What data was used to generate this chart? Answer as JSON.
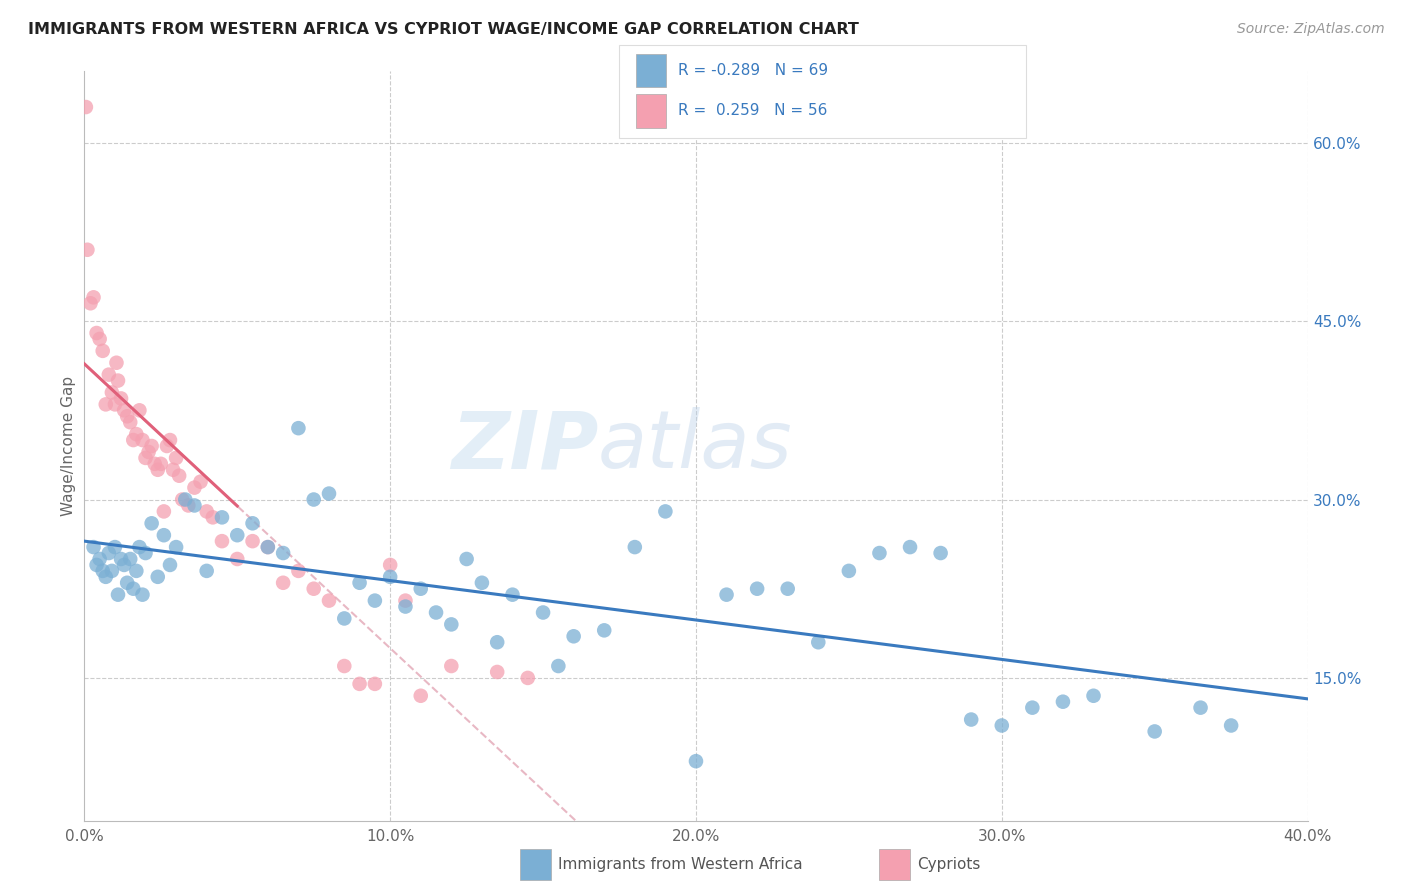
{
  "title": "IMMIGRANTS FROM WESTERN AFRICA VS CYPRIOT WAGE/INCOME GAP CORRELATION CHART",
  "source": "Source: ZipAtlas.com",
  "ylabel": "Wage/Income Gap",
  "x_tick_labels": [
    "0.0%",
    "10.0%",
    "20.0%",
    "30.0%",
    "40.0%"
  ],
  "x_tick_values": [
    0.0,
    10.0,
    20.0,
    30.0,
    40.0
  ],
  "y_tick_labels_right": [
    "15.0%",
    "30.0%",
    "45.0%",
    "60.0%"
  ],
  "y_tick_values": [
    15.0,
    30.0,
    45.0,
    60.0
  ],
  "xlim": [
    0.0,
    40.0
  ],
  "ylim": [
    3.0,
    66.0
  ],
  "legend_blue_label": "Immigrants from Western Africa",
  "legend_pink_label": "Cypriots",
  "blue_R": "-0.289",
  "blue_N": "69",
  "pink_R": "0.259",
  "pink_N": "56",
  "blue_color": "#7bafd4",
  "pink_color": "#f4a0b0",
  "blue_line_color": "#3a7abf",
  "pink_line_color": "#e0607a",
  "ref_line_color": "#e8b8c4",
  "watermark_zip": "ZIP",
  "watermark_atlas": "atlas",
  "blue_dots_x": [
    0.3,
    0.4,
    0.5,
    0.6,
    0.7,
    0.8,
    0.9,
    1.0,
    1.1,
    1.2,
    1.3,
    1.4,
    1.5,
    1.6,
    1.7,
    1.8,
    1.9,
    2.0,
    2.2,
    2.4,
    2.6,
    2.8,
    3.0,
    3.3,
    3.6,
    4.0,
    4.5,
    5.0,
    5.5,
    6.0,
    6.5,
    7.0,
    7.5,
    8.0,
    8.5,
    9.0,
    9.5,
    10.0,
    10.5,
    11.0,
    11.5,
    12.0,
    12.5,
    13.0,
    13.5,
    14.0,
    15.0,
    15.5,
    16.0,
    17.0,
    18.0,
    19.0,
    20.0,
    21.0,
    22.0,
    23.0,
    24.0,
    25.0,
    26.0,
    27.0,
    28.0,
    29.0,
    30.0,
    31.0,
    32.0,
    33.0,
    35.0,
    36.5,
    37.5
  ],
  "blue_dots_y": [
    26.0,
    24.5,
    25.0,
    24.0,
    23.5,
    25.5,
    24.0,
    26.0,
    22.0,
    25.0,
    24.5,
    23.0,
    25.0,
    22.5,
    24.0,
    26.0,
    22.0,
    25.5,
    28.0,
    23.5,
    27.0,
    24.5,
    26.0,
    30.0,
    29.5,
    24.0,
    28.5,
    27.0,
    28.0,
    26.0,
    25.5,
    36.0,
    30.0,
    30.5,
    20.0,
    23.0,
    21.5,
    23.5,
    21.0,
    22.5,
    20.5,
    19.5,
    25.0,
    23.0,
    18.0,
    22.0,
    20.5,
    16.0,
    18.5,
    19.0,
    26.0,
    29.0,
    8.0,
    22.0,
    22.5,
    22.5,
    18.0,
    24.0,
    25.5,
    26.0,
    25.5,
    11.5,
    11.0,
    12.5,
    13.0,
    13.5,
    10.5,
    12.5,
    11.0
  ],
  "pink_dots_x": [
    0.05,
    0.1,
    0.2,
    0.3,
    0.4,
    0.5,
    0.6,
    0.7,
    0.8,
    0.9,
    1.0,
    1.05,
    1.1,
    1.2,
    1.3,
    1.4,
    1.5,
    1.6,
    1.7,
    1.8,
    1.9,
    2.0,
    2.1,
    2.2,
    2.3,
    2.4,
    2.5,
    2.6,
    2.7,
    2.8,
    2.9,
    3.0,
    3.1,
    3.2,
    3.4,
    3.6,
    3.8,
    4.0,
    4.2,
    4.5,
    5.0,
    5.5,
    6.0,
    6.5,
    7.0,
    7.5,
    8.0,
    8.5,
    9.0,
    9.5,
    10.0,
    10.5,
    11.0,
    12.0,
    13.5,
    14.5
  ],
  "pink_dots_y": [
    63.0,
    51.0,
    46.5,
    47.0,
    44.0,
    43.5,
    42.5,
    38.0,
    40.5,
    39.0,
    38.0,
    41.5,
    40.0,
    38.5,
    37.5,
    37.0,
    36.5,
    35.0,
    35.5,
    37.5,
    35.0,
    33.5,
    34.0,
    34.5,
    33.0,
    32.5,
    33.0,
    29.0,
    34.5,
    35.0,
    32.5,
    33.5,
    32.0,
    30.0,
    29.5,
    31.0,
    31.5,
    29.0,
    28.5,
    26.5,
    25.0,
    26.5,
    26.0,
    23.0,
    24.0,
    22.5,
    21.5,
    16.0,
    14.5,
    14.5,
    24.5,
    21.5,
    13.5,
    16.0,
    15.5,
    15.0
  ]
}
